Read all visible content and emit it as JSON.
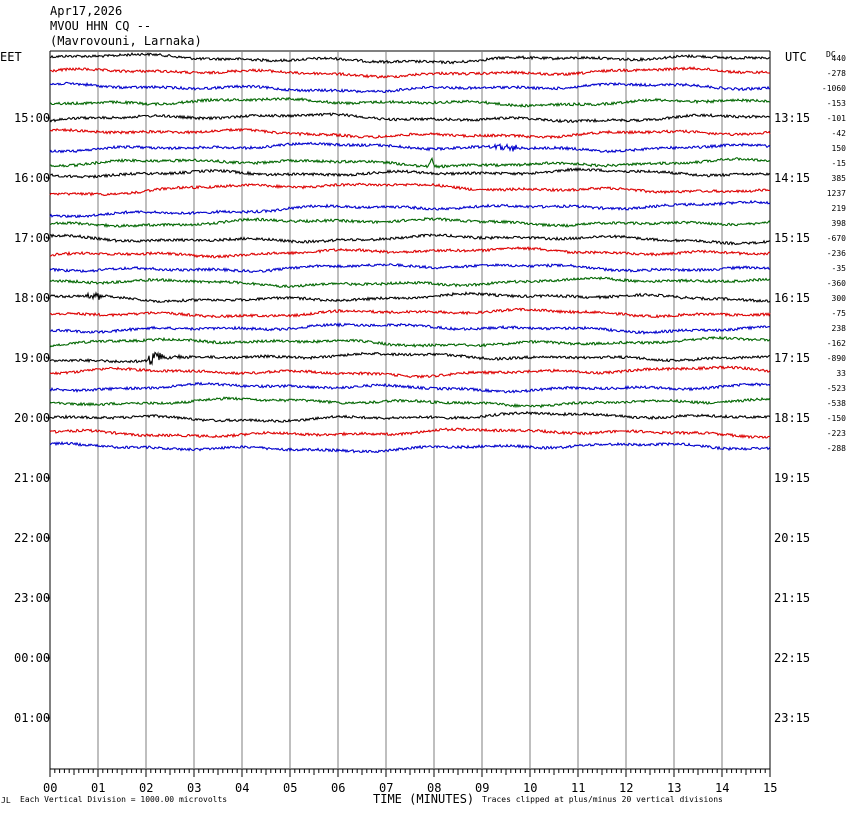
{
  "header": {
    "date": "Apr17,2026",
    "station": "MVOU HHN CQ --",
    "location": "(Mavrovouni, Larnaka)"
  },
  "left_zone_label": "EET",
  "right_zone_label": "UTC",
  "dc_label": "DC",
  "footer": {
    "scale_note": "Each Vertical Division = 1000.00 microvolts",
    "axis_title": "TIME (MINUTES)",
    "clip_note": "Traces clipped at plus/minus 20 vertical divisions"
  },
  "colors": {
    "trace_cycle": [
      "#000000",
      "#dd0000",
      "#0000cc",
      "#006600"
    ],
    "grid": "#7f7f7f"
  },
  "chart_data": {
    "type": "line",
    "title": "MVOU HHN CQ --",
    "xlabel": "TIME (MINUTES)",
    "x_ticks": [
      "00",
      "01",
      "02",
      "03",
      "04",
      "05",
      "06",
      "07",
      "08",
      "09",
      "10",
      "11",
      "12",
      "13",
      "14",
      "15"
    ],
    "xlim": [
      0,
      15
    ],
    "grid": true,
    "left_hour_labels": [
      "15:00",
      "16:00",
      "17:00",
      "18:00",
      "19:00",
      "20:00",
      "21:00",
      "22:00",
      "23:00",
      "00:00",
      "01:00"
    ],
    "right_hour_labels": [
      "13:15",
      "14:15",
      "15:15",
      "16:15",
      "17:15",
      "18:15",
      "19:15",
      "20:15",
      "21:15",
      "22:15",
      "23:15"
    ],
    "dc_offsets": [
      "440",
      "-278",
      "-1060",
      "-153",
      "-101",
      "-42",
      "150",
      "-15",
      "385",
      "1237",
      "219",
      "398",
      "-670",
      "-236",
      "-35",
      "-360",
      "300",
      "-75",
      "238",
      "-162",
      "-890",
      "33",
      "-523",
      "-538",
      "-150",
      "-223",
      "-288"
    ],
    "trace_count": 27,
    "events": [
      {
        "trace": 7,
        "minute": 7.95,
        "note": "spike"
      },
      {
        "trace": 6,
        "minute": 9.5,
        "note": "burst"
      },
      {
        "trace": 20,
        "minute": 2.1,
        "note": "earthquake"
      },
      {
        "trace": 16,
        "minute": 0.9,
        "note": "small event"
      }
    ]
  }
}
